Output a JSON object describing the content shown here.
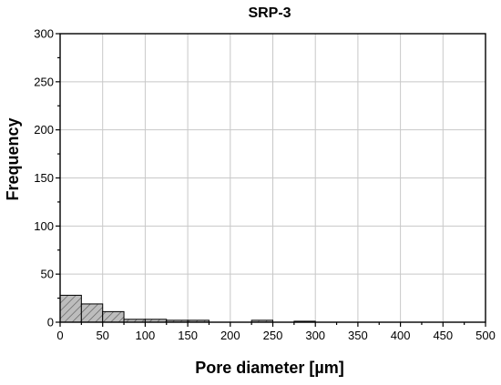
{
  "chart_data": {
    "type": "bar",
    "title": "SRP-3",
    "xlabel": "Pore diameter [µm]",
    "ylabel": "Frequency",
    "xlim": [
      0,
      500
    ],
    "ylim": [
      0,
      300
    ],
    "xticks": [
      "0",
      "50",
      "100",
      "150",
      "200",
      "250",
      "300",
      "350",
      "400",
      "450",
      "500"
    ],
    "yticks": [
      "0",
      "50",
      "100",
      "150",
      "200",
      "250",
      "300"
    ],
    "grid": true,
    "bin_width": 25,
    "bins": [
      {
        "start": 0,
        "end": 25,
        "value": 28
      },
      {
        "start": 25,
        "end": 50,
        "value": 19
      },
      {
        "start": 50,
        "end": 75,
        "value": 11
      },
      {
        "start": 75,
        "end": 100,
        "value": 3
      },
      {
        "start": 100,
        "end": 125,
        "value": 3
      },
      {
        "start": 125,
        "end": 150,
        "value": 2
      },
      {
        "start": 150,
        "end": 175,
        "value": 2
      },
      {
        "start": 175,
        "end": 200,
        "value": 0
      },
      {
        "start": 200,
        "end": 225,
        "value": 0
      },
      {
        "start": 225,
        "end": 250,
        "value": 2
      },
      {
        "start": 250,
        "end": 275,
        "value": 0
      },
      {
        "start": 275,
        "end": 300,
        "value": 1
      }
    ],
    "bar_fill": "#bdbdbd",
    "bar_pattern": "diagonal-hatch"
  }
}
